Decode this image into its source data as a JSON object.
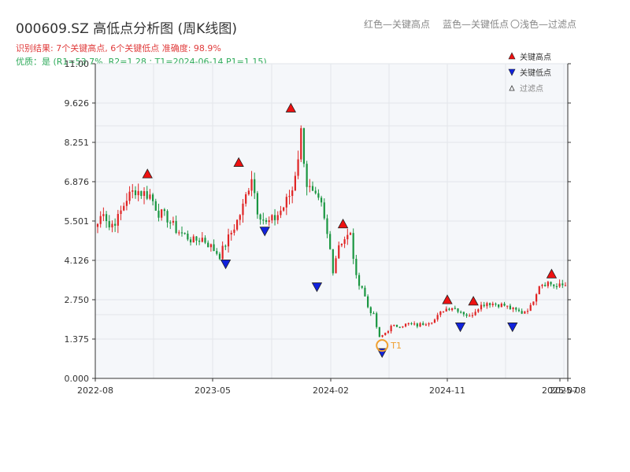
{
  "header": {
    "title": "000609.SZ 高低点分析图 (周K线图)",
    "result": "识别结果: 7个关键高点, 6个关键低点   准确度: 98.9%",
    "quality": "优质：是 (R1=53.7%, R2=1.28 ; T1=2024-06-14 P1=1.15)"
  },
  "top_legend": {
    "red": "红色—关键高点",
    "blue": "蓝色—关键低点",
    "filtered": "〇浅色—过滤点"
  },
  "colors": {
    "up": "#e02424",
    "down": "#1a9641",
    "high_marker": "#ee1111",
    "low_marker": "#1122dd",
    "t1": "#f0a030",
    "plot_bg": "#f5f7fa",
    "grid": "#e2e5ea"
  },
  "chart_data": {
    "type": "candlestick",
    "title": "000609.SZ 高低点分析图 (周K线图)",
    "ylim": [
      0,
      11
    ],
    "yticks": [
      0.0,
      1.375,
      2.75,
      4.126,
      5.501,
      6.876,
      8.251,
      9.626,
      11.0
    ],
    "ytick_labels": [
      "0.000",
      "1.375",
      "2.750",
      "4.126",
      "5.501",
      "6.876",
      "8.251",
      "9.626",
      "11.00"
    ],
    "xticks": [
      "2022-08",
      "2023-05",
      "2024-02",
      "2024-11",
      "2025-07",
      "2025-08"
    ],
    "legend": [
      {
        "label": "关键高点",
        "symbol": "triangle-up",
        "color": "#ee1111"
      },
      {
        "label": "关键低点",
        "symbol": "triangle-down",
        "color": "#1122dd"
      },
      {
        "label": "过滤点",
        "symbol": "triangle-up-hollow",
        "color": "#333333"
      }
    ],
    "key_highs": [
      {
        "date": "2022-12",
        "value": 6.9
      },
      {
        "date": "2023-07",
        "value": 7.3
      },
      {
        "date": "2023-11",
        "value": 9.2
      },
      {
        "date": "2024-03",
        "value": 5.15
      },
      {
        "date": "2024-11",
        "value": 2.5
      },
      {
        "date": "2025-01",
        "value": 2.45
      },
      {
        "date": "2025-07",
        "value": 3.4
      }
    ],
    "key_lows": [
      {
        "date": "2023-06",
        "value": 4.25
      },
      {
        "date": "2023-09",
        "value": 5.4
      },
      {
        "date": "2024-01",
        "value": 3.45
      },
      {
        "date": "2024-06",
        "value": 1.15
      },
      {
        "date": "2024-12",
        "value": 2.05
      },
      {
        "date": "2025-04",
        "value": 2.05
      }
    ],
    "t1": {
      "label": "T1",
      "date": "2024-06-14",
      "value": 1.15
    },
    "anchors": [
      [
        0,
        5.4
      ],
      [
        2,
        5.9
      ],
      [
        4,
        5.3
      ],
      [
        7,
        5.6
      ],
      [
        10,
        6.3
      ],
      [
        13,
        6.6
      ],
      [
        15,
        6.5
      ],
      [
        18,
        6.4
      ],
      [
        21,
        5.8
      ],
      [
        24,
        5.6
      ],
      [
        27,
        5.2
      ],
      [
        30,
        5.0
      ],
      [
        33,
        4.8
      ],
      [
        36,
        4.9
      ],
      [
        39,
        4.6
      ],
      [
        42,
        4.3
      ],
      [
        45,
        4.9
      ],
      [
        48,
        5.5
      ],
      [
        50,
        6.0
      ],
      [
        53,
        7.1
      ],
      [
        55,
        5.9
      ],
      [
        58,
        5.4
      ],
      [
        61,
        5.6
      ],
      [
        64,
        6.0
      ],
      [
        67,
        6.6
      ],
      [
        69,
        7.8
      ],
      [
        70,
        8.6
      ],
      [
        72,
        6.8
      ],
      [
        74,
        6.4
      ],
      [
        77,
        6.0
      ],
      [
        80,
        4.5
      ],
      [
        81,
        3.8
      ],
      [
        83,
        4.7
      ],
      [
        85,
        4.9
      ],
      [
        87,
        5.0
      ],
      [
        89,
        3.5
      ],
      [
        91,
        3.2
      ],
      [
        93,
        2.5
      ],
      [
        95,
        2.2
      ],
      [
        97,
        1.4
      ],
      [
        99,
        1.6
      ],
      [
        101,
        1.8
      ],
      [
        104,
        1.85
      ],
      [
        107,
        1.9
      ],
      [
        110,
        1.85
      ],
      [
        113,
        1.95
      ],
      [
        116,
        2.05
      ],
      [
        119,
        2.4
      ],
      [
        122,
        2.5
      ],
      [
        125,
        2.35
      ],
      [
        128,
        2.15
      ],
      [
        131,
        2.5
      ],
      [
        134,
        2.65
      ],
      [
        137,
        2.6
      ],
      [
        140,
        2.55
      ],
      [
        143,
        2.4
      ],
      [
        146,
        2.3
      ],
      [
        149,
        2.5
      ],
      [
        152,
        3.3
      ],
      [
        155,
        3.35
      ],
      [
        158,
        3.2
      ],
      [
        162,
        3.3
      ]
    ]
  }
}
